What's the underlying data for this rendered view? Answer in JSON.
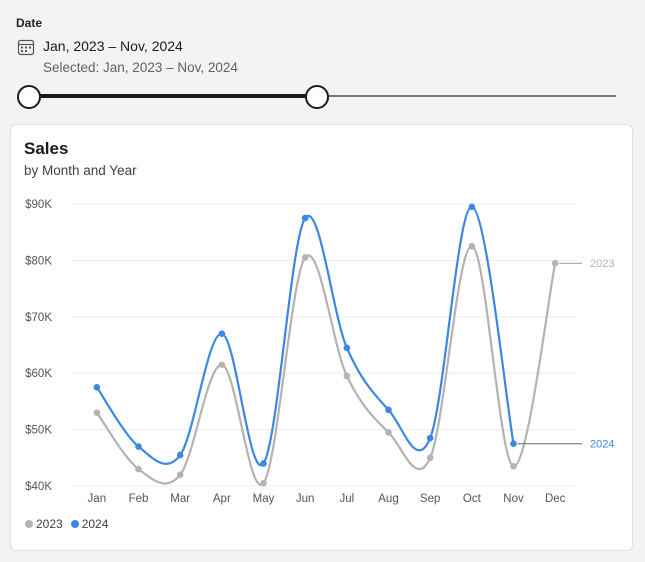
{
  "filter": {
    "label": "Date",
    "range_text": "Jan, 2023 – Nov, 2024",
    "selected_text": "Selected: Jan, 2023 – Nov, 2024",
    "calendar_icon": "calendar-icon",
    "slider_low": 0.0,
    "slider_high": 0.49
  },
  "card": {
    "title": "Sales",
    "subtitle": "by Month and Year"
  },
  "colors": {
    "series_2023": "#b3b3b3",
    "series_2024": "#3b87e3",
    "grid": "#ececec"
  },
  "chart_data": {
    "type": "line",
    "title": "Sales",
    "subtitle": "by Month and Year",
    "categories": [
      "Jan",
      "Feb",
      "Mar",
      "Apr",
      "May",
      "Jun",
      "Jul",
      "Aug",
      "Sep",
      "Oct",
      "Nov",
      "Dec"
    ],
    "ylim": [
      40000,
      90000
    ],
    "yticks": [
      40000,
      50000,
      60000,
      70000,
      80000,
      90000
    ],
    "ytick_labels": [
      "$40K",
      "$50K",
      "$60K",
      "$70K",
      "$80K",
      "$90K"
    ],
    "grid": true,
    "legend_position": "bottom-left",
    "series": [
      {
        "name": "2023",
        "color": "#b3b3b3",
        "values": [
          53000,
          43000,
          42000,
          61500,
          40500,
          80500,
          59500,
          49500,
          45000,
          82500,
          43500,
          79500
        ]
      },
      {
        "name": "2024",
        "color": "#3b87e3",
        "values": [
          57500,
          47000,
          45500,
          67000,
          44000,
          87500,
          64500,
          53500,
          48500,
          89500,
          47500,
          null
        ]
      }
    ]
  }
}
